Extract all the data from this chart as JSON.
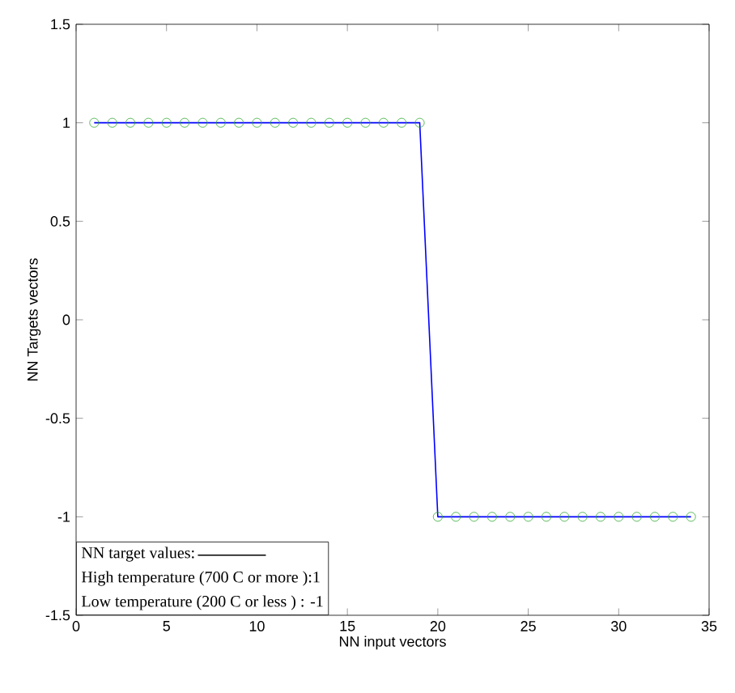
{
  "chart_data": {
    "type": "line",
    "xlabel": "NN input vectors",
    "ylabel": "NN Targets vectors",
    "x": [
      1,
      2,
      3,
      4,
      5,
      6,
      7,
      8,
      9,
      10,
      11,
      12,
      13,
      14,
      15,
      16,
      17,
      18,
      19,
      20,
      21,
      22,
      23,
      24,
      25,
      26,
      27,
      28,
      29,
      30,
      31,
      32,
      33,
      34
    ],
    "series": [
      {
        "color": "#0000ff",
        "marker": "none",
        "values": [
          1,
          1,
          1,
          1,
          1,
          1,
          1,
          1,
          1,
          1,
          1,
          1,
          1,
          1,
          1,
          1,
          1,
          1,
          1,
          -1,
          -1,
          -1,
          -1,
          -1,
          -1,
          -1,
          -1,
          -1,
          -1,
          -1,
          -1,
          -1,
          -1,
          -1
        ]
      },
      {
        "type": "scatter",
        "color": "#33aa33",
        "marker": "circle",
        "values": [
          1,
          1,
          1,
          1,
          1,
          1,
          1,
          1,
          1,
          1,
          1,
          1,
          1,
          1,
          1,
          1,
          1,
          1,
          1,
          -1,
          -1,
          -1,
          -1,
          -1,
          -1,
          -1,
          -1,
          -1,
          -1,
          -1,
          -1,
          -1,
          -1,
          -1
        ]
      }
    ],
    "xlim": [
      0,
      35
    ],
    "ylim": [
      -1.5,
      1.5
    ],
    "xticks": [
      0,
      5,
      10,
      15,
      20,
      25,
      30,
      35
    ],
    "yticks": [
      -1.5,
      -1,
      -0.5,
      0,
      0.5,
      1,
      1.5
    ],
    "annotations": [
      "NN target values:",
      "High temperature (700 C or more ):1",
      "Low temperature (200 C or less ) : -1"
    ]
  }
}
